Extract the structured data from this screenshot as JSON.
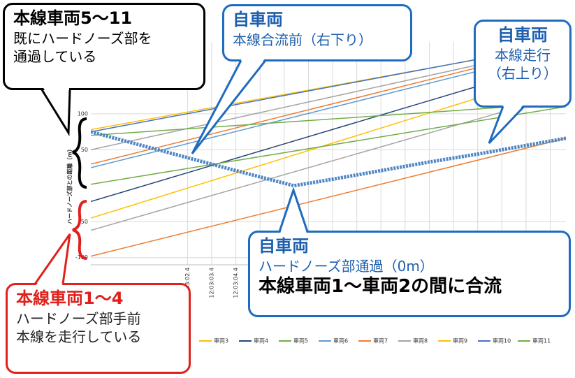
{
  "chart_data": {
    "type": "line",
    "y_label": "ハードノーズ部との距離（m）",
    "xlim": [
      0,
      19.65
    ],
    "ylim": [
      -110,
      200
    ],
    "yticks": [
      -100,
      -50,
      50,
      100
    ],
    "xticks": [
      {
        "value": 4,
        "label": "12:03:02.4"
      },
      {
        "value": 5,
        "label": "12:03:03.4"
      },
      {
        "value": 6,
        "label": "12:03:04.4"
      },
      {
        "value": 7,
        "label": "12"
      },
      {
        "value": 8,
        "label": "12"
      },
      {
        "value": 9,
        "label": "12"
      },
      {
        "value": 10,
        "label": "12"
      },
      {
        "value": 11,
        "label": "12"
      },
      {
        "value": 12,
        "label": "12"
      },
      {
        "value": 13,
        "label": "12"
      },
      {
        "value": 14,
        "label": "12"
      },
      {
        "value": 15,
        "label": "12"
      },
      {
        "value": 16,
        "label": "12"
      },
      {
        "value": 17,
        "label": "12"
      },
      {
        "value": 18,
        "label": "12"
      },
      {
        "value": 19,
        "label": "12"
      }
    ],
    "grid": true,
    "series": [
      {
        "color": "#ed7d31",
        "x": [
          0,
          19.65
        ],
        "values": [
          -98,
          66
        ]
      },
      {
        "color": "#a5a5a5",
        "x": [
          0,
          19.65
        ],
        "values": [
          -62,
          128
        ]
      },
      {
        "name": "車両3",
        "color": "#ffc000",
        "x": [
          0,
          19.65
        ],
        "values": [
          -45,
          160
        ]
      },
      {
        "name": "車両4",
        "color": "#264478",
        "x": [
          0,
          19.65
        ],
        "values": [
          -22,
          175
        ]
      },
      {
        "name": "車両5",
        "color": "#70ad47",
        "x": [
          0,
          19.65
        ],
        "values": [
          2,
          110
        ]
      },
      {
        "name": "車両6",
        "color": "#5b9bd5",
        "x": [
          0,
          19.65
        ],
        "values": [
          25,
          190
        ]
      },
      {
        "name": "車両7",
        "color": "#ed7d31",
        "x": [
          0,
          19.65
        ],
        "values": [
          30,
          195
        ]
      },
      {
        "name": "車両8",
        "color": "#a5a5a5",
        "x": [
          0,
          19.65
        ],
        "values": [
          50,
          195
        ]
      },
      {
        "name": "車両9",
        "color": "#ffc000",
        "x": [
          0,
          19.65
        ],
        "values": [
          78,
          198
        ]
      },
      {
        "name": "車両10",
        "color": "#4472c4",
        "x": [
          0,
          19.65
        ],
        "values": [
          75,
          199
        ]
      },
      {
        "name": "車両11",
        "color": "#70ad47",
        "x": [
          0,
          19.65
        ],
        "values": [
          70,
          115
        ]
      },
      {
        "color": "#4f86c6",
        "x": [
          0,
          2,
          4,
          6,
          8.4,
          10,
          12,
          14,
          16,
          18,
          19.65
        ],
        "values": [
          75,
          57,
          39,
          21,
          0,
          9,
          21,
          33,
          44,
          56,
          66
        ]
      }
    ],
    "annotations": [
      [
        "本線車両5～11",
        "既にハードノーズ部を",
        "通過している"
      ],
      [
        "自車両",
        "本線合流前（右下り）"
      ],
      [
        "自車両",
        "本線走行",
        "（右上り）"
      ],
      [
        "自車両",
        "ハードノーズ部通過（0m）",
        "本線車両1～車両2の間に合流"
      ],
      [
        "本線車両1～4",
        "ハードノーズ部手前",
        "本線を走行している"
      ]
    ]
  }
}
